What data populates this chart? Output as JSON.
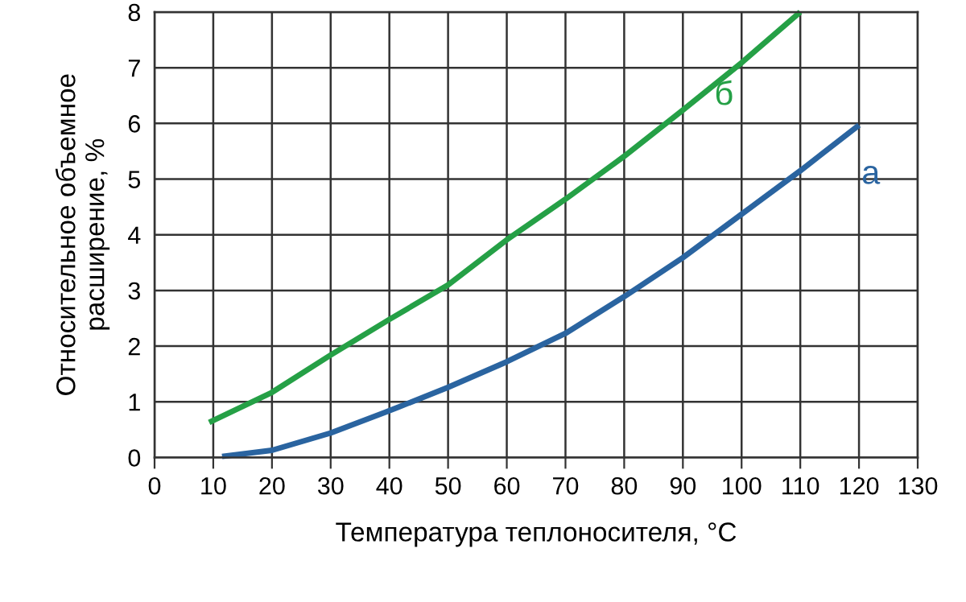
{
  "chart_data": {
    "type": "line",
    "xlabel": "Температура теплоносителя, °C",
    "ylabel": "Относительное объемное\nрасширение, %",
    "xlim": [
      0,
      130
    ],
    "xticks": [
      0,
      10,
      20,
      30,
      40,
      50,
      60,
      70,
      80,
      90,
      100,
      110,
      120,
      130
    ],
    "ylim": [
      0,
      8
    ],
    "yticks": [
      0,
      1,
      2,
      3,
      4,
      5,
      6,
      7,
      8
    ],
    "grid": true,
    "marker": "none",
    "line_style": "solid",
    "series": [
      {
        "name": "а",
        "color": "#2a64a0",
        "x": [
          11.5,
          20,
          30,
          40,
          50,
          60,
          70,
          80,
          90,
          100,
          110,
          120
        ],
        "values": [
          0.02,
          0.13,
          0.44,
          0.84,
          1.26,
          1.72,
          2.23,
          2.89,
          3.59,
          4.37,
          5.15,
          5.97
        ]
      },
      {
        "name": "б",
        "color": "#25a046",
        "x": [
          9.3,
          20,
          30,
          40,
          50,
          60,
          70,
          80,
          90,
          100,
          110
        ],
        "values": [
          0.63,
          1.17,
          1.84,
          2.48,
          3.1,
          3.91,
          4.64,
          5.41,
          6.24,
          7.09,
          8.0
        ]
      }
    ]
  }
}
